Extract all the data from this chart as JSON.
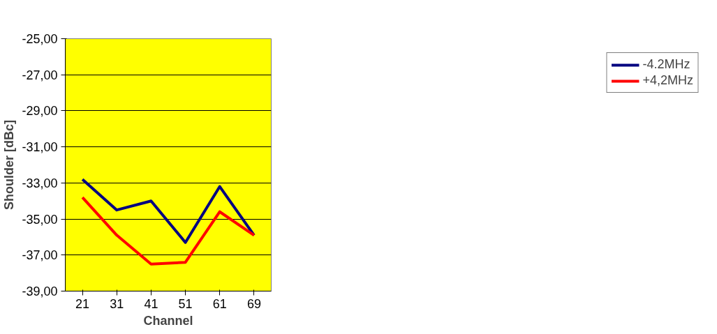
{
  "chart_data": {
    "type": "line",
    "xlabel": "Channel",
    "ylabel": "Shoulder [dBc]",
    "categories": [
      "21",
      "31",
      "41",
      "51",
      "61",
      "69"
    ],
    "series": [
      {
        "name": "-4.2MHz",
        "color": "#000080",
        "values": [
          -32.8,
          -34.5,
          -34.0,
          -36.3,
          -33.2,
          -35.9
        ]
      },
      {
        "name": "+4,2MHz",
        "color": "#ff0000",
        "values": [
          -33.8,
          -35.9,
          -37.5,
          -37.4,
          -34.6,
          -35.9
        ]
      }
    ],
    "ylim": [
      -39,
      -25
    ],
    "yticks": [
      {
        "value": -39,
        "label": "-39,00"
      },
      {
        "value": -37,
        "label": "-37,00"
      },
      {
        "value": -35,
        "label": "-35,00"
      },
      {
        "value": -33,
        "label": "-33,00"
      },
      {
        "value": -31,
        "label": "-31,00"
      },
      {
        "value": -29,
        "label": "-29,00"
      },
      {
        "value": -27,
        "label": "-27,00"
      },
      {
        "value": -25,
        "label": "-25,00"
      }
    ],
    "grid": "y",
    "legend": "right",
    "marker": "none",
    "line_style": "solid"
  }
}
